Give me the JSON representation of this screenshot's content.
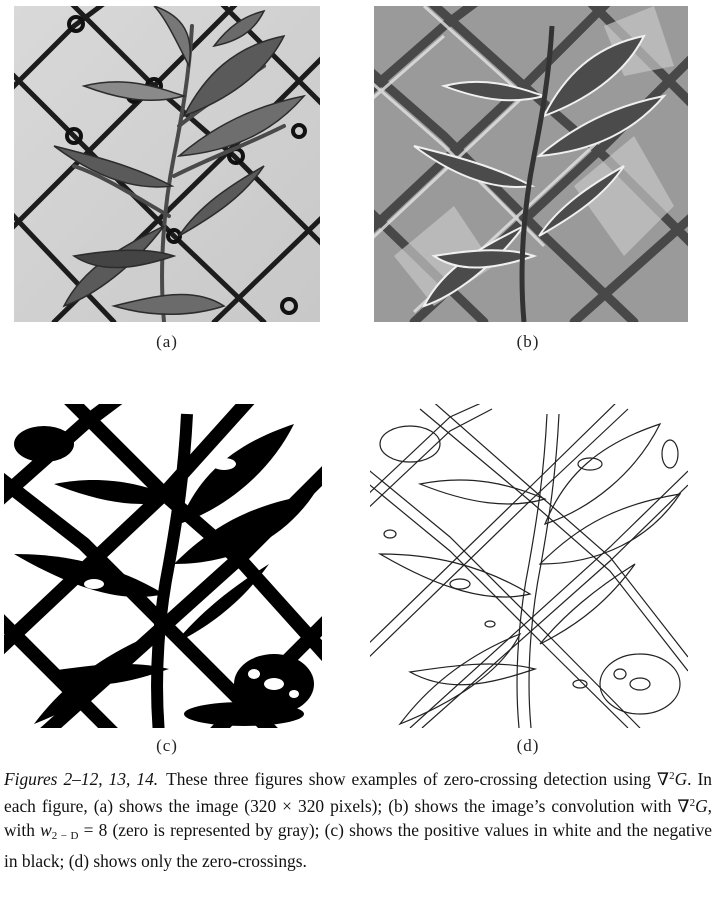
{
  "figure": {
    "panels": [
      {
        "id": "a",
        "label": "(a)",
        "kind": "original-image"
      },
      {
        "id": "b",
        "label": "(b)",
        "kind": "convolution-gray"
      },
      {
        "id": "c",
        "label": "(c)",
        "kind": "sign-black-white"
      },
      {
        "id": "d",
        "label": "(d)",
        "kind": "zero-crossing-contours"
      }
    ],
    "caption": {
      "lead": "Figures 2–12, 13, 14.",
      "seg1": "These three figures show examples of zero-crossing detection using ",
      "op": "∇",
      "sup": "2",
      "g": "G",
      "seg2": ". In each figure, (a) shows the image (320 × 320 pixels); (b) shows the image’s convolution with ",
      "seg3": ", with ",
      "w": "w",
      "sub": "2 − D",
      "seg4": " = 8 (zero is represented by gray); (c) shows the positive values in white and the negative in black; (d) shows only the zero-crossings."
    }
  }
}
